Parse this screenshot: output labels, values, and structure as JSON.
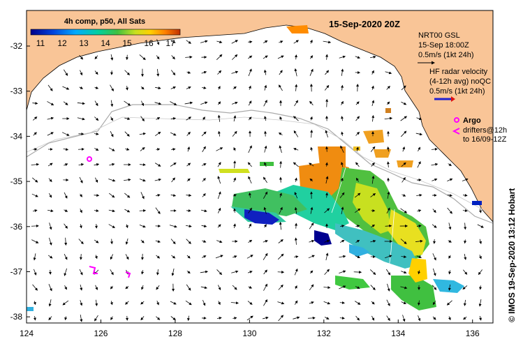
{
  "map": {
    "title": "15-Sep-2020 20Z",
    "colorbar": {
      "label": "4h comp, p50, All Sats",
      "ticks": [
        "11",
        "12",
        "13",
        "14",
        "15",
        "16",
        "17"
      ],
      "colors": [
        "#00008b",
        "#0044dd",
        "#00aaff",
        "#00d0a0",
        "#40c040",
        "#c8e020",
        "#ffd000",
        "#ff8000",
        "#c03000"
      ]
    },
    "current_legend": {
      "line1": "NRT00 GSL",
      "line2": "15-Sep 18:00Z",
      "line3": "0.5m/s (1kt 24h)"
    },
    "radar_legend": {
      "line1": "HF radar velocity",
      "line2": "(4-12h avg) noQC",
      "line3": "0.5m/s (1kt 24h)"
    },
    "argo_legend": {
      "label": "Argo",
      "line2": "drifters@12h",
      "line3": "to 16/09-12Z"
    },
    "credit": "© IMOS 19-Sep-2020 13:12 Hobart",
    "x_ticks": [
      "124",
      "126",
      "128",
      "130",
      "132",
      "134",
      "136"
    ],
    "y_ticks": [
      "-32",
      "-33",
      "-34",
      "-35",
      "-36",
      "-37",
      "-38"
    ],
    "colors": {
      "land": "#f9c597",
      "argo": "#ff00ff",
      "radar_arrow": "#2020d0"
    }
  }
}
